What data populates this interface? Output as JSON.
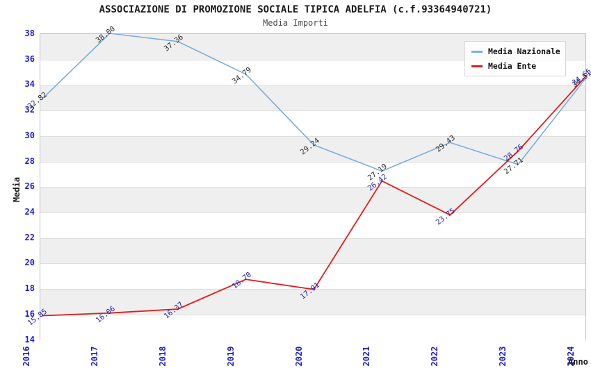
{
  "header": {
    "title": "ASSOCIAZIONE DI PROMOZIONE SOCIALE TIPICA ADELFIA (c.f.93364940721)",
    "subtitle": "Media Importi"
  },
  "legend": [
    {
      "label": "Media Nazionale",
      "color": "#7aaede"
    },
    {
      "label": "Media Ente",
      "color": "#e31b1c"
    }
  ],
  "chart_data": {
    "type": "line",
    "title": "ASSOCIAZIONE DI PROMOZIONE SOCIALE TIPICA ADELFIA (c.f.93364940721)",
    "subtitle": "Media Importi",
    "xlabel": "Anno",
    "ylabel": "Media",
    "x": [
      "2016",
      "2017",
      "2018",
      "2019",
      "2020",
      "2021",
      "2022",
      "2023",
      "2024"
    ],
    "series": [
      {
        "name": "Media Nazionale",
        "color": "#7aaede",
        "label_color": "#2b2b2b",
        "values": [
          32.82,
          38.0,
          37.36,
          34.79,
          29.24,
          27.19,
          29.43,
          27.71,
          34.51
        ],
        "labels": [
          "32.82",
          "38.00",
          "37.36",
          "34.79",
          "29.24",
          "27.19",
          "29.43",
          "27.71",
          "34.51"
        ]
      },
      {
        "name": "Media Ente",
        "color": "#e31b1c",
        "label_color": "#2222b0",
        "values": [
          15.85,
          16.06,
          16.37,
          18.7,
          17.91,
          26.42,
          23.75,
          28.76,
          34.65
        ],
        "labels": [
          "15.85",
          "16.06",
          "16.37",
          "18.70",
          "17.91",
          "26.42",
          "23.75",
          "28.76",
          "34.65"
        ]
      }
    ],
    "ylim": [
      14,
      38
    ],
    "ytick_step": 2,
    "yticks": [
      "38",
      "36",
      "34",
      "32",
      "30",
      "28",
      "26",
      "24",
      "22",
      "20",
      "18",
      "16",
      "14"
    ],
    "grid": true,
    "band_colors": [
      "#efefef",
      "#ffffff"
    ],
    "tick_color": "#1c1cd6",
    "legend_position": "top-right"
  }
}
